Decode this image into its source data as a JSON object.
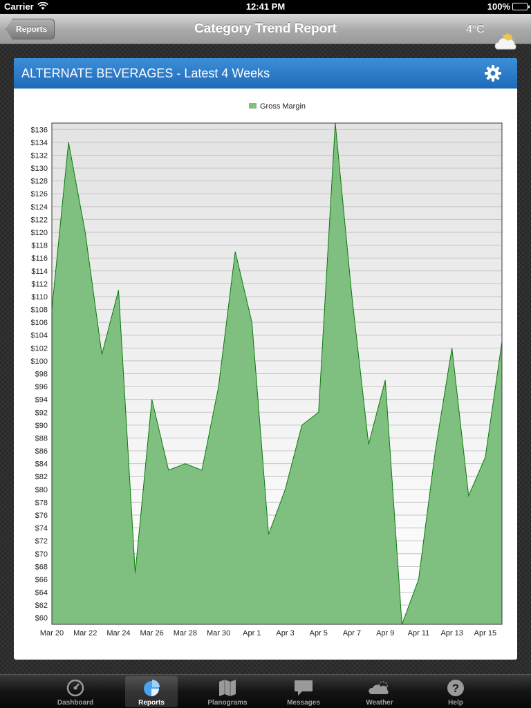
{
  "status_bar": {
    "carrier": "Carrier",
    "time": "12:41 PM",
    "battery": "100%"
  },
  "nav": {
    "back_label": "Reports",
    "title": "Category Trend Report",
    "temperature": "4°C",
    "weather_icon": "partly-cloudy-icon"
  },
  "card": {
    "title": "ALTERNATE BEVERAGES - Latest 4 Weeks",
    "settings_icon": "gear-icon"
  },
  "colors": {
    "header_blue": "#2a7acb",
    "area_fill": "#7fbf7f",
    "area_stroke": "#0a7a0a"
  },
  "chart_data": {
    "type": "area",
    "legend": [
      "Gross Margin"
    ],
    "legend_position": "top-center",
    "grid": true,
    "x": [
      "Mar 20",
      "Mar 21",
      "Mar 22",
      "Mar 23",
      "Mar 24",
      "Mar 25",
      "Mar 26",
      "Mar 27",
      "Mar 28",
      "Mar 29",
      "Mar 30",
      "Mar 31",
      "Apr 1",
      "Apr 2",
      "Apr 3",
      "Apr 4",
      "Apr 5",
      "Apr 6",
      "Apr 7",
      "Apr 8",
      "Apr 9",
      "Apr 10",
      "Apr 11",
      "Apr 12",
      "Apr 13",
      "Apr 14",
      "Apr 15",
      "Apr 16"
    ],
    "x_tick_labels": [
      "Mar 20",
      "Mar 22",
      "Mar 24",
      "Mar 26",
      "Mar 28",
      "Mar 30",
      "Apr 1",
      "Apr 3",
      "Apr 5",
      "Apr 7",
      "Apr 9",
      "Apr 11",
      "Apr 13",
      "Apr 15"
    ],
    "series": [
      {
        "name": "Gross Margin",
        "values": [
          108,
          134,
          120,
          101,
          111,
          67,
          94,
          83,
          84,
          83,
          96,
          117,
          106,
          73,
          80,
          90,
          92,
          137,
          110,
          87,
          97,
          59,
          66,
          86,
          102,
          79,
          85,
          103
        ]
      }
    ],
    "ylim": [
      59,
      137
    ],
    "y_tick_labels": [
      "$60",
      "$62",
      "$64",
      "$66",
      "$68",
      "$70",
      "$72",
      "$74",
      "$76",
      "$78",
      "$80",
      "$82",
      "$84",
      "$86",
      "$88",
      "$90",
      "$92",
      "$94",
      "$96",
      "$98",
      "$100",
      "$102",
      "$104",
      "$106",
      "$108",
      "$110",
      "$112",
      "$114",
      "$116",
      "$118",
      "$120",
      "$122",
      "$124",
      "$126",
      "$128",
      "$130",
      "$132",
      "$134",
      "$136"
    ]
  },
  "tabs": [
    {
      "label": "Dashboard",
      "icon": "speedometer-icon",
      "selected": false
    },
    {
      "label": "Reports",
      "icon": "pie-chart-icon",
      "selected": true
    },
    {
      "label": "Planograms",
      "icon": "map-icon",
      "selected": false
    },
    {
      "label": "Messages",
      "icon": "speech-bubble-icon",
      "selected": false
    },
    {
      "label": "Weather",
      "icon": "cloud-icon",
      "selected": false
    },
    {
      "label": "Help",
      "icon": "help-icon",
      "selected": false
    }
  ]
}
